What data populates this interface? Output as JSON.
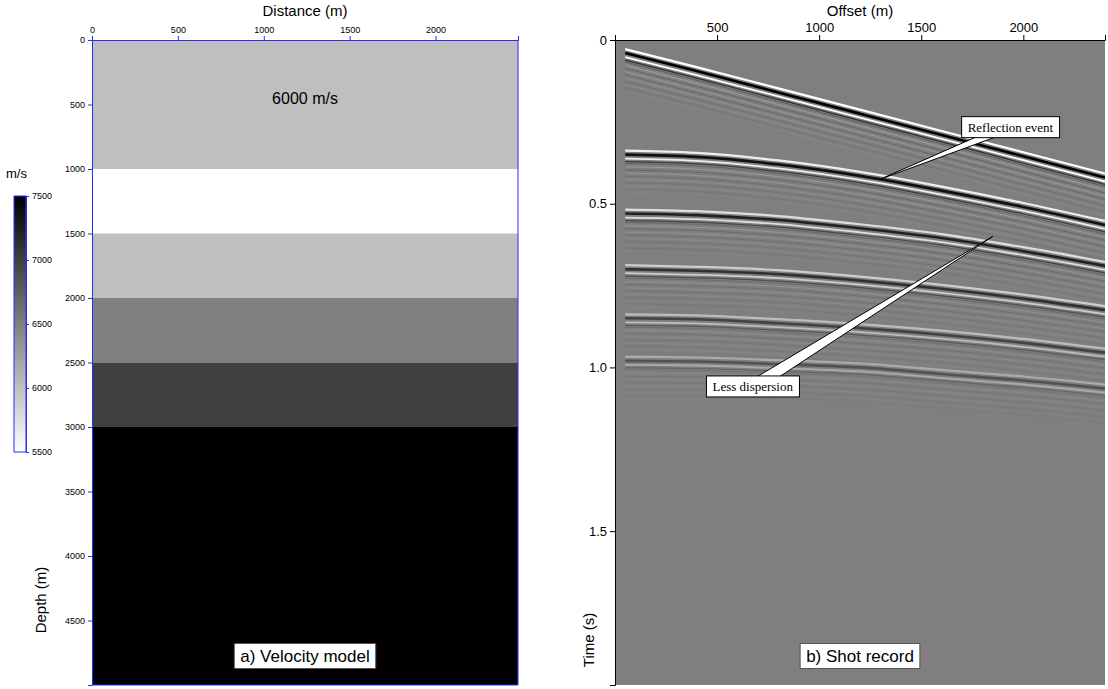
{
  "chart_data": [
    {
      "type": "layers",
      "title": "a) Velocity model",
      "x_label": "Distance (m)",
      "y_label": "Depth (m)",
      "xlim": [
        0,
        2480
      ],
      "xticks": [
        0,
        500,
        1000,
        1500,
        2000
      ],
      "ylim": [
        0,
        5000
      ],
      "yticks": [
        0,
        500,
        1000,
        1500,
        2000,
        2500,
        3000,
        3500,
        4000,
        4500
      ],
      "layers": {
        "top": [
          0,
          1000,
          1500,
          2000,
          2500,
          3000
        ],
        "bottom": [
          1000,
          1500,
          2000,
          2500,
          3000,
          5000
        ],
        "values": [
          6000,
          5500,
          6000,
          6500,
          7000,
          7500
        ]
      },
      "colorbar": {
        "label": "m/s",
        "lim": [
          5500,
          7500
        ],
        "ticks": [
          5500,
          6000,
          6500,
          7000,
          7500
        ]
      },
      "annotations": [
        {
          "text": "6000 m/s",
          "x": 1240,
          "y": 450
        }
      ]
    },
    {
      "type": "line",
      "title": "b) Shot record",
      "x_label": "Offset (m)",
      "y_label": "Time (s)",
      "xlim": [
        0,
        2400
      ],
      "xticks": [
        500,
        1000,
        1500,
        2000
      ],
      "ylim": [
        0,
        1.97
      ],
      "yticks": [
        0,
        0.5,
        {
          "value": 1,
          "label": "1.0"
        },
        1.5
      ],
      "color": "#000000",
      "x": [
        50,
        400,
        800,
        1200,
        1600,
        2000,
        2400
      ],
      "series": [
        {
          "values": [
            0.04,
            0.095,
            0.16,
            0.225,
            0.29,
            0.355,
            0.42
          ]
        },
        {
          "values": [
            0.35,
            0.357,
            0.38,
            0.415,
            0.46,
            0.51,
            0.565
          ]
        },
        {
          "values": [
            0.53,
            0.535,
            0.55,
            0.575,
            0.605,
            0.645,
            0.69
          ]
        },
        {
          "values": [
            0.7,
            0.705,
            0.715,
            0.735,
            0.76,
            0.79,
            0.825
          ]
        },
        {
          "values": [
            0.85,
            0.853,
            0.865,
            0.88,
            0.9,
            0.925,
            0.955
          ]
        },
        {
          "values": [
            0.98,
            0.982,
            0.99,
            1.0,
            1.02,
            1.04,
            1.065
          ]
        }
      ],
      "annotations": [
        {
          "text": "Reflection event",
          "x": 1300,
          "y": 0.425
        },
        {
          "text": "Less dispersion",
          "x": 1850,
          "y": 0.6
        }
      ]
    }
  ]
}
